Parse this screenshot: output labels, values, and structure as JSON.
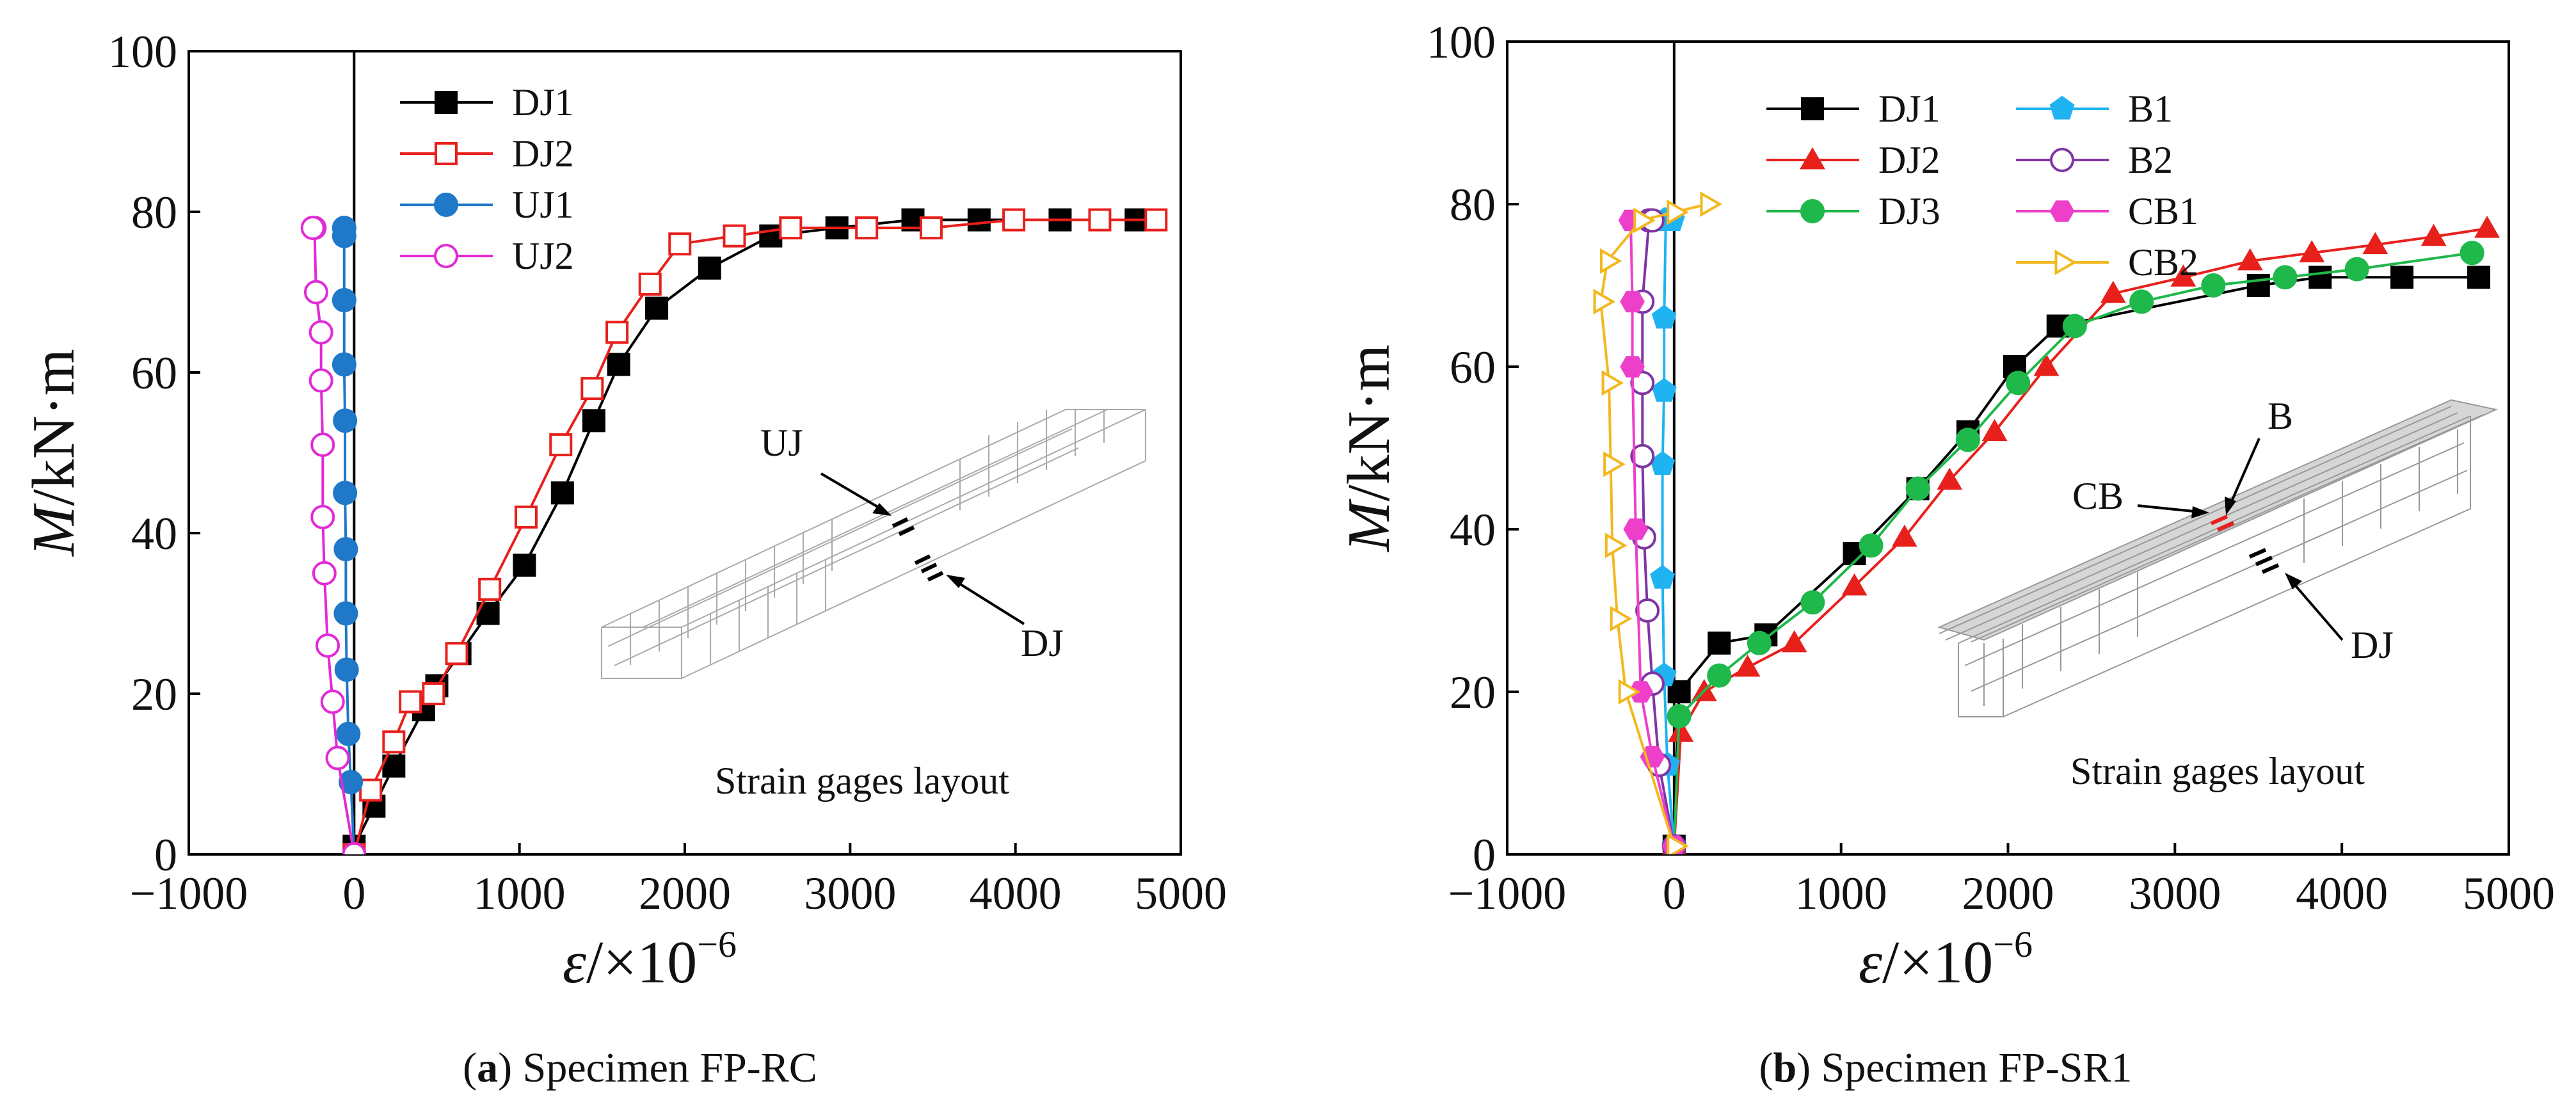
{
  "chart_data": [
    {
      "type": "line",
      "caption_label": "a",
      "caption_text": "Specimen FP-RC",
      "xlabel_var": "ε",
      "xlabel_unit": "/×10",
      "xlabel_exp": "−6",
      "ylabel_var": "M",
      "ylabel_unit": "/kN·m",
      "xlim": [
        -1000,
        5000
      ],
      "ylim": [
        0,
        100
      ],
      "xticks": [
        -1000,
        0,
        1000,
        2000,
        3000,
        4000,
        5000
      ],
      "yticks": [
        0,
        20,
        40,
        60,
        80,
        100
      ],
      "xtick_labels": [
        "−1000",
        "0",
        "1000",
        "2000",
        "3000",
        "4000",
        "5000"
      ],
      "ytick_labels": [
        "0",
        "20",
        "40",
        "60",
        "80",
        "100"
      ],
      "legend_position": "top-left",
      "series": [
        {
          "name": "DJ1",
          "color": "#000000",
          "marker": "square-filled",
          "x": [
            0,
            120,
            240,
            420,
            500,
            640,
            810,
            1030,
            1260,
            1450,
            1600,
            1830,
            2150,
            2520,
            2920,
            3380,
            3780,
            4270,
            4730
          ],
          "y": [
            1,
            6,
            11,
            18,
            21,
            25,
            30,
            36,
            45,
            54,
            61,
            68,
            73,
            77,
            78,
            79,
            79,
            79,
            79
          ]
        },
        {
          "name": "DJ2",
          "color": "#e8201c",
          "marker": "square-open",
          "x": [
            0,
            100,
            240,
            340,
            480,
            620,
            820,
            1040,
            1250,
            1440,
            1590,
            1790,
            1970,
            2300,
            2640,
            3100,
            3490,
            3990,
            4510,
            4850
          ],
          "y": [
            0,
            8,
            14,
            19,
            20,
            25,
            33,
            42,
            51,
            58,
            65,
            71,
            76,
            77,
            78,
            78,
            78,
            79,
            79,
            79
          ]
        },
        {
          "name": "UJ1",
          "color": "#1f78c8",
          "marker": "circle-filled",
          "x": [
            0,
            -20,
            -35,
            -45,
            -50,
            -50,
            -55,
            -55,
            -60,
            -60,
            -60,
            -60
          ],
          "y": [
            0,
            9,
            15,
            23,
            30,
            38,
            45,
            54,
            61,
            69,
            77,
            78
          ]
        },
        {
          "name": "UJ2",
          "color": "#e22ad6",
          "marker": "circle-open",
          "x": [
            0,
            -100,
            -130,
            -160,
            -180,
            -190,
            -190,
            -200,
            -200,
            -230,
            -240,
            -250
          ],
          "y": [
            0,
            12,
            19,
            26,
            35,
            42,
            51,
            59,
            65,
            70,
            78,
            78
          ]
        }
      ],
      "inset": {
        "title": "Strain gages layout",
        "labels": [
          "UJ",
          "DJ"
        ]
      }
    },
    {
      "type": "line",
      "caption_label": "b",
      "caption_text": "Specimen FP-SR1",
      "xlabel_var": "ε",
      "xlabel_unit": "/×10",
      "xlabel_exp": "−6",
      "ylabel_var": "M",
      "ylabel_unit": "/kN·m",
      "xlim": [
        -1000,
        5000
      ],
      "ylim": [
        0,
        100
      ],
      "xticks": [
        -1000,
        0,
        1000,
        2000,
        3000,
        4000,
        5000
      ],
      "yticks": [
        0,
        20,
        40,
        60,
        80,
        100
      ],
      "xtick_labels": [
        "−1000",
        "0",
        "1000",
        "2000",
        "3000",
        "4000",
        "5000"
      ],
      "ytick_labels": [
        "0",
        "20",
        "40",
        "60",
        "80",
        "100"
      ],
      "legend_position": "top-left",
      "series": [
        {
          "name": "DJ1",
          "color": "#000000",
          "marker": "square-filled",
          "x": [
            0,
            30,
            270,
            550,
            1080,
            1460,
            1760,
            2040,
            2300,
            3500,
            3870,
            4360,
            4820
          ],
          "y": [
            1,
            20,
            26,
            27,
            37,
            45,
            52,
            60,
            65,
            70,
            71,
            71,
            71
          ]
        },
        {
          "name": "DJ2",
          "color": "#e8201c",
          "marker": "triangle-filled",
          "x": [
            0,
            40,
            180,
            440,
            720,
            1080,
            1380,
            1650,
            1920,
            2230,
            2630,
            3050,
            3450,
            3820,
            4200,
            4550,
            4870
          ],
          "y": [
            1,
            15,
            20,
            23,
            26,
            33,
            39,
            46,
            52,
            60,
            69,
            71,
            73,
            74,
            75,
            76,
            77
          ]
        },
        {
          "name": "DJ3",
          "color": "#1fb84a",
          "marker": "circle-filled",
          "x": [
            0,
            30,
            270,
            510,
            830,
            1180,
            1460,
            1760,
            2060,
            2400,
            2800,
            3230,
            3660,
            4090,
            4780
          ],
          "y": [
            1,
            17,
            22,
            26,
            31,
            38,
            45,
            51,
            58,
            65,
            68,
            70,
            71,
            72,
            74
          ]
        },
        {
          "name": "B1",
          "color": "#1fb3f2",
          "marker": "pentagon-filled",
          "x": [
            0,
            -40,
            -60,
            -70,
            -70,
            -60,
            -60,
            -50,
            -60,
            -40,
            -20,
            -10
          ],
          "y": [
            1,
            11,
            22,
            34,
            48,
            57,
            66,
            78,
            78,
            78,
            78,
            78
          ]
        },
        {
          "name": "B2",
          "color": "#7f35a3",
          "marker": "circle-open",
          "x": [
            0,
            -90,
            -130,
            -160,
            -180,
            -190,
            -190,
            -190,
            -150,
            -130
          ],
          "y": [
            1,
            11,
            21,
            30,
            39,
            49,
            58,
            68,
            78,
            78
          ]
        },
        {
          "name": "CB1",
          "color": "#ee3fcb",
          "marker": "hexagon-filled",
          "x": [
            0,
            -130,
            -200,
            -230,
            -250,
            -250,
            -260
          ],
          "y": [
            1,
            12,
            20,
            40,
            60,
            68,
            78
          ]
        },
        {
          "name": "CB2",
          "color": "#f2b81e",
          "marker": "triangle-right-open",
          "x": [
            0,
            -290,
            -340,
            -370,
            -380,
            -390,
            -440,
            -440,
            -400,
            -200,
            0,
            200
          ],
          "y": [
            1,
            20,
            29,
            38,
            48,
            58,
            68,
            68,
            73,
            78,
            79,
            80
          ]
        }
      ],
      "inset": {
        "title": "Strain gages layout",
        "labels": [
          "B",
          "CB",
          "DJ"
        ]
      }
    }
  ]
}
